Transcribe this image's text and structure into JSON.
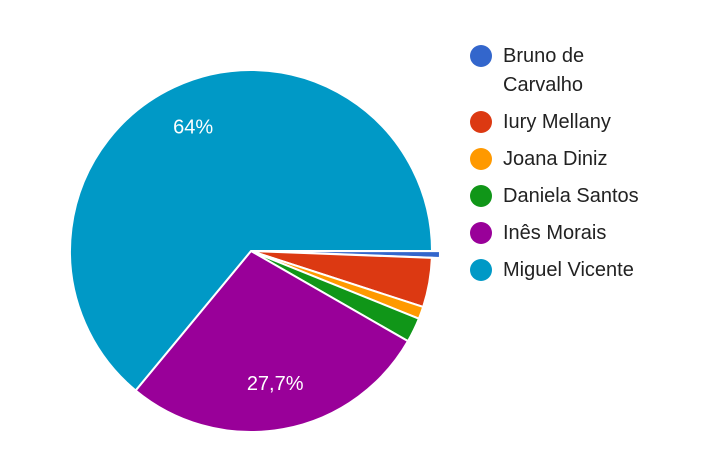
{
  "chart_data": {
    "type": "pie",
    "categories": [
      "Bruno de Carvalho",
      "Iury Mellany",
      "Joana Diniz",
      "Daniela Santos",
      "Inês Morais",
      "Miguel Vicente"
    ],
    "values": [
      0.6,
      4.4,
      1.1,
      2.2,
      27.7,
      64
    ],
    "value_labels": [
      null,
      null,
      null,
      null,
      "27,7%",
      "64%"
    ],
    "colors": [
      "#3366cc",
      "#dc3912",
      "#ff9900",
      "#109618",
      "#990099",
      "#0099c6"
    ],
    "legend": "right"
  }
}
